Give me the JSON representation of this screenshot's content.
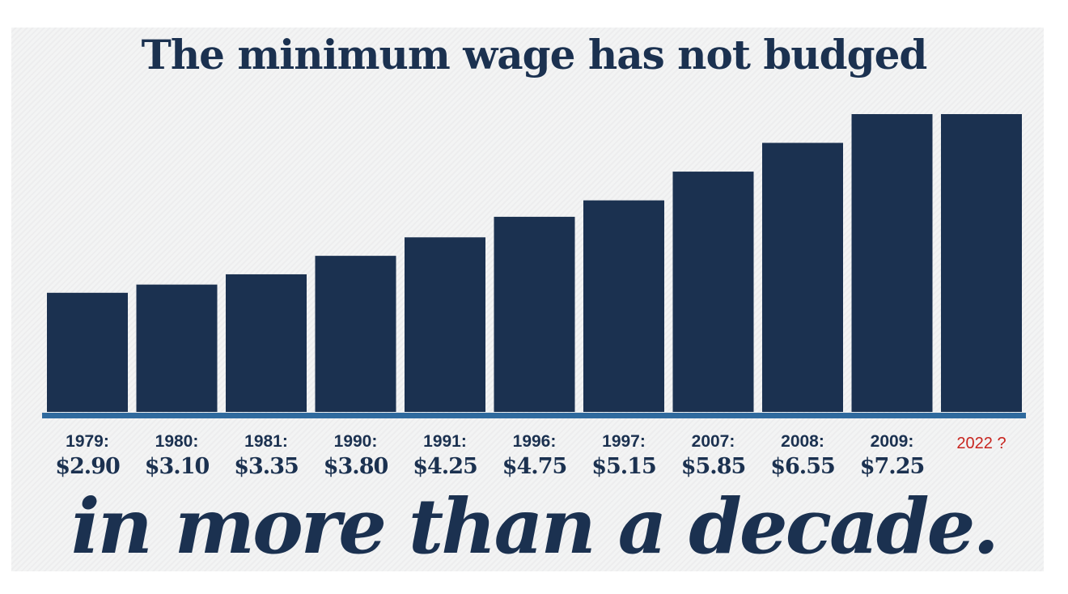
{
  "colors": {
    "bar": "#1b3150",
    "baseline": "#2f6a9e",
    "text": "#1b3150",
    "question_label": "#c8251f",
    "panel_background": "#efeff0"
  },
  "headline": "The minimum wage has not budged",
  "tagline": "in more than a decade.",
  "chart_data": {
    "type": "bar",
    "title": "The minimum wage has not budged",
    "subtitle": "in more than a decade.",
    "xlabel": "",
    "ylabel": "",
    "categories": [
      "1979:",
      "1980:",
      "1981:",
      "1990:",
      "1991:",
      "1996:",
      "1997:",
      "2007:",
      "2008:",
      "2009:",
      "2022 ?"
    ],
    "values": [
      2.9,
      3.1,
      3.35,
      3.8,
      4.25,
      4.75,
      5.15,
      5.85,
      6.55,
      7.25,
      7.25
    ],
    "value_labels": [
      "$2.90",
      "$3.10",
      "$3.35",
      "$3.80",
      "$4.25",
      "$4.75",
      "$5.15",
      "$5.85",
      "$6.55",
      "$7.25",
      ""
    ],
    "ylim": [
      0,
      7.25
    ],
    "grid": false,
    "legend": "none"
  }
}
